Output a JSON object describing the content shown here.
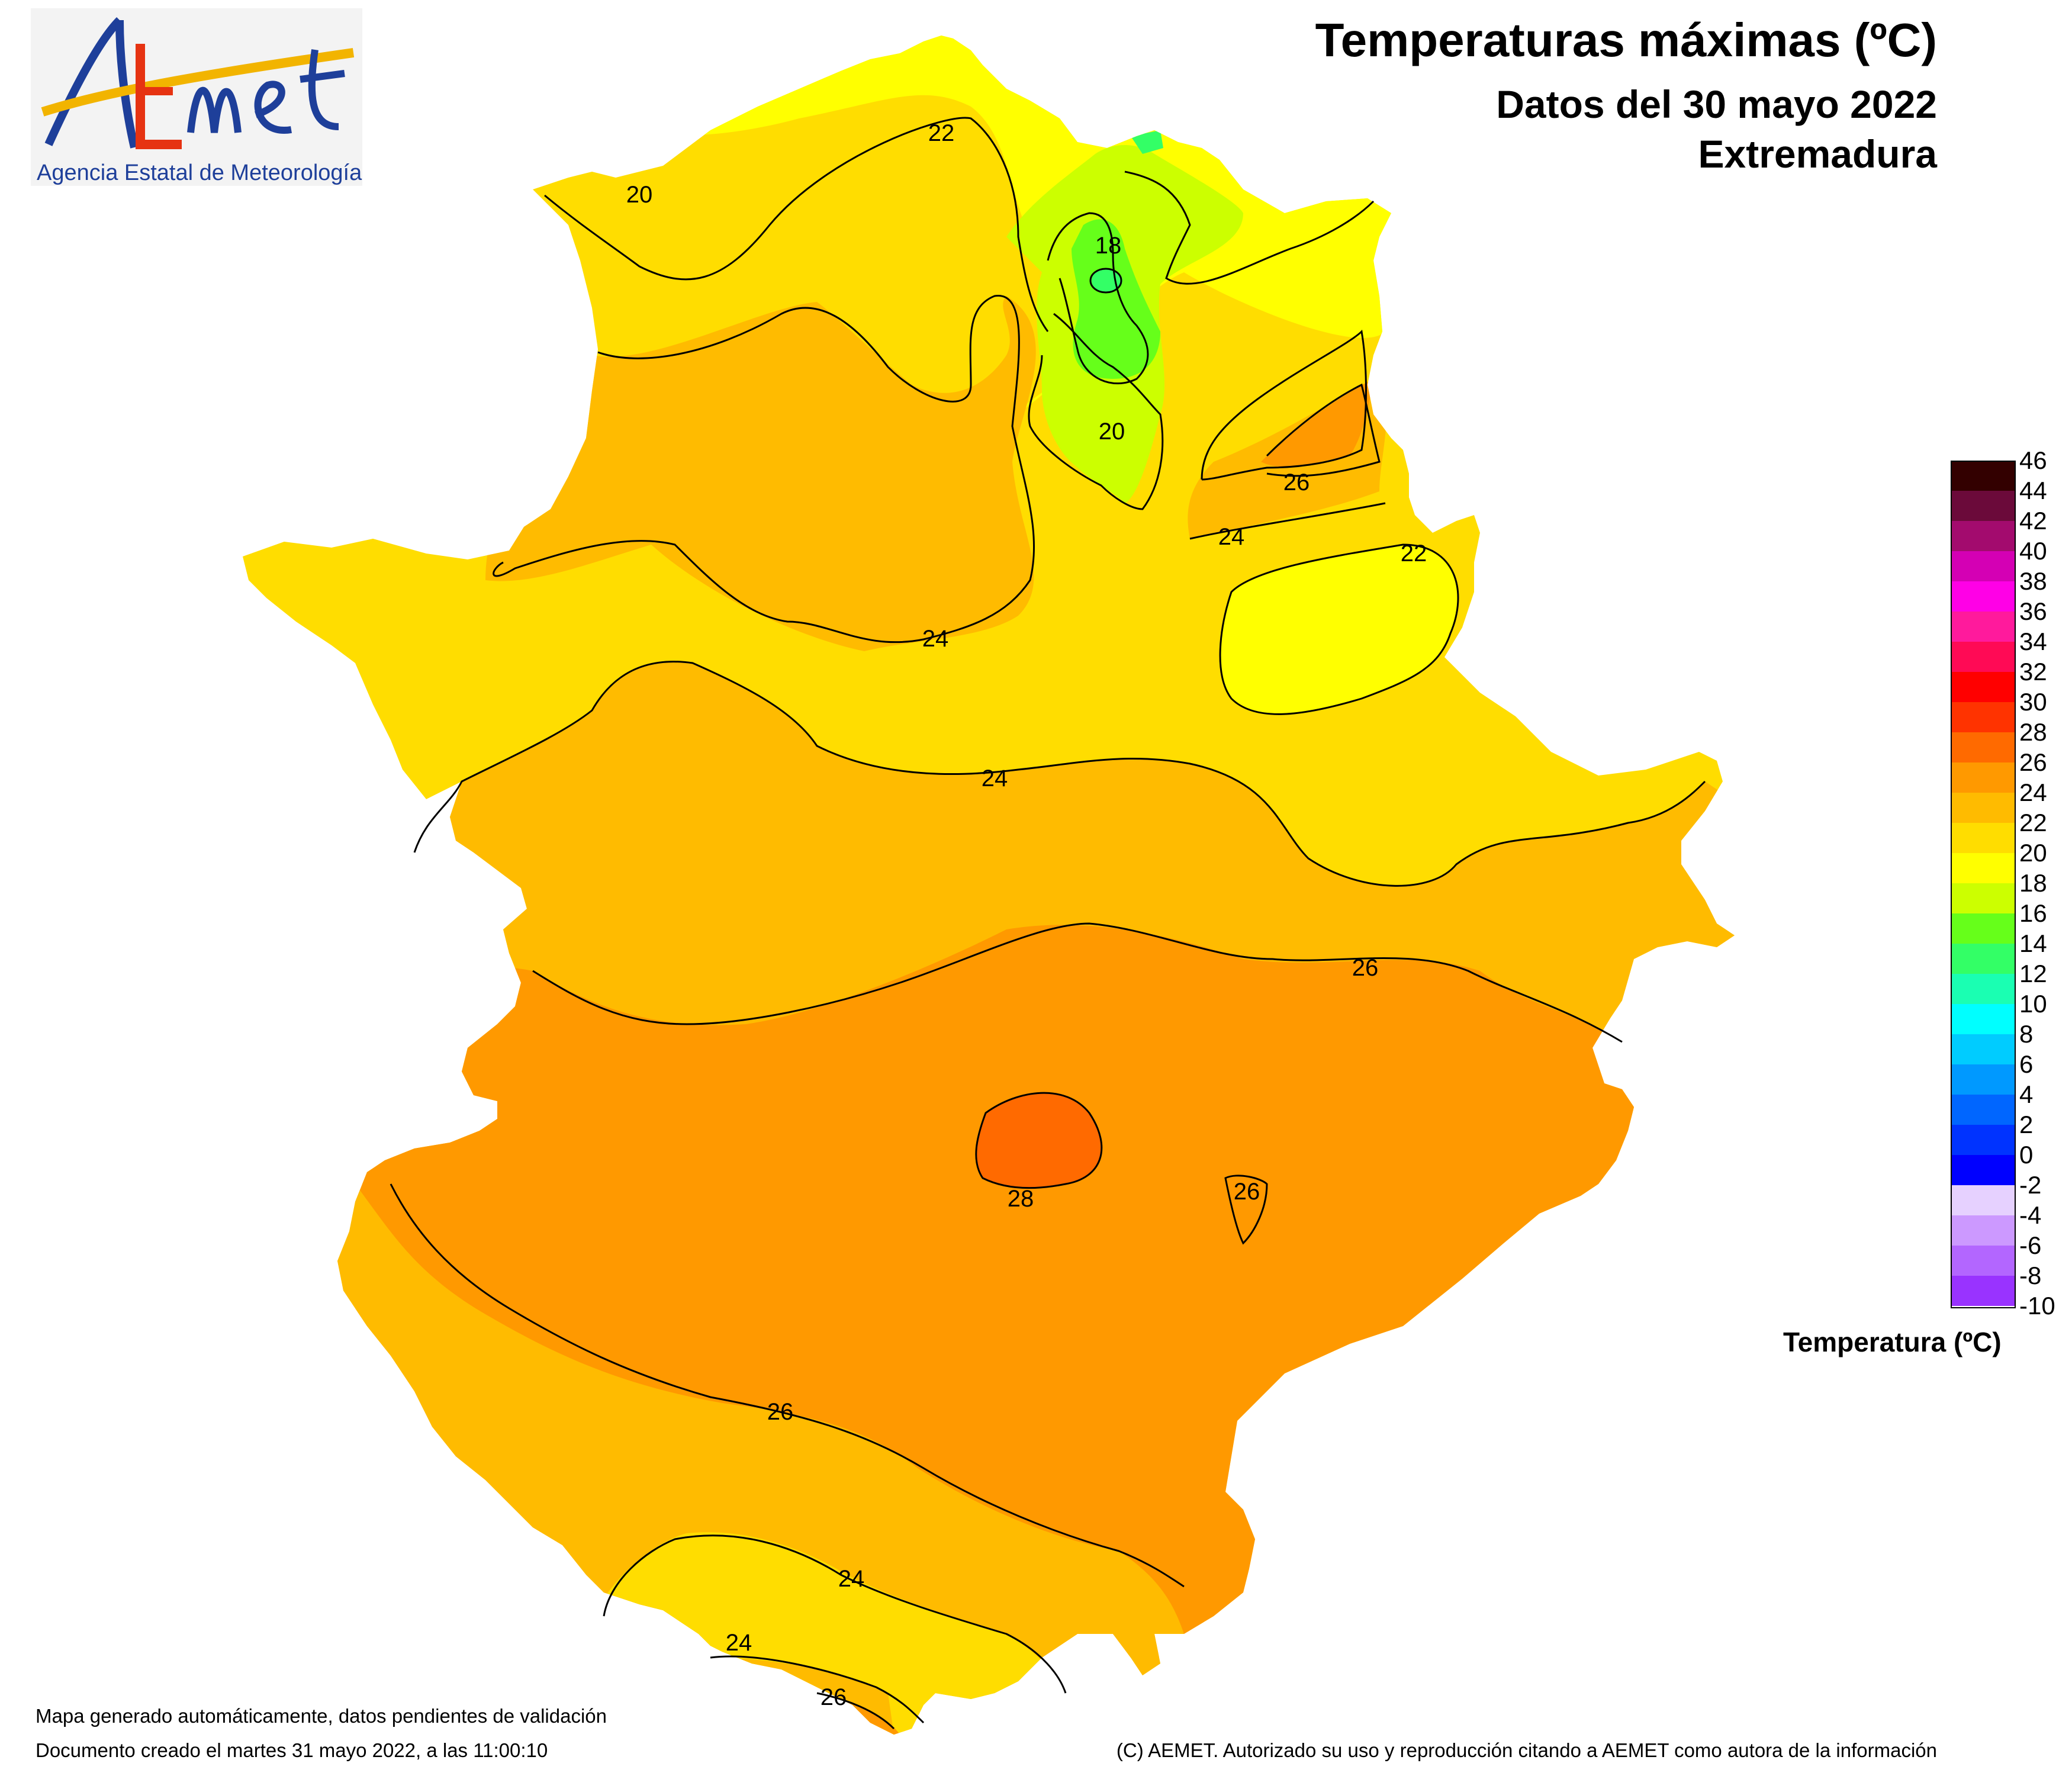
{
  "title": "Temperaturas máximas (ºC)",
  "subtitle_date": "Datos del 30 mayo 2022",
  "region": "Extremadura",
  "logo": {
    "wordmark": "AEMet",
    "agency": "Agencia Estatal de Meteorología"
  },
  "legend": {
    "title": "Temperatura (ºC)",
    "ticks": [
      "46",
      "44",
      "42",
      "40",
      "38",
      "36",
      "34",
      "32",
      "30",
      "28",
      "26",
      "24",
      "22",
      "20",
      "18",
      "16",
      "14",
      "12",
      "10",
      "8",
      "6",
      "4",
      "2",
      "0",
      "-2",
      "-4",
      "-6",
      "-8",
      "-10"
    ],
    "colors": [
      "#330000",
      "#6b0a3a",
      "#a30b6e",
      "#d400b4",
      "#ff00e6",
      "#ff1a9c",
      "#ff0a55",
      "#ff0000",
      "#ff3300",
      "#ff6a00",
      "#ff9900",
      "#ffbb00",
      "#ffdd00",
      "#ffff00",
      "#ccff00",
      "#66ff1a",
      "#33ff66",
      "#1affb2",
      "#00ffff",
      "#00ccff",
      "#0099ff",
      "#0066ff",
      "#0033ff",
      "#0000ff",
      "#e6d1ff",
      "#cc99ff",
      "#b366ff",
      "#9933ff",
      "#8000cc"
    ]
  },
  "contour_labels": [
    "22",
    "20",
    "18",
    "20",
    "26",
    "24",
    "22",
    "24",
    "24",
    "26",
    "28",
    "26",
    "26",
    "24",
    "24",
    "26"
  ],
  "footer": {
    "line1": "Mapa generado automáticamente, datos pendientes de validación",
    "line2": "Documento creado el martes 31 mayo 2022, a las 11:00:10",
    "copyright": "(C) AEMET. Autorizado su uso y reproducción citando a AEMET como autora de la información"
  }
}
